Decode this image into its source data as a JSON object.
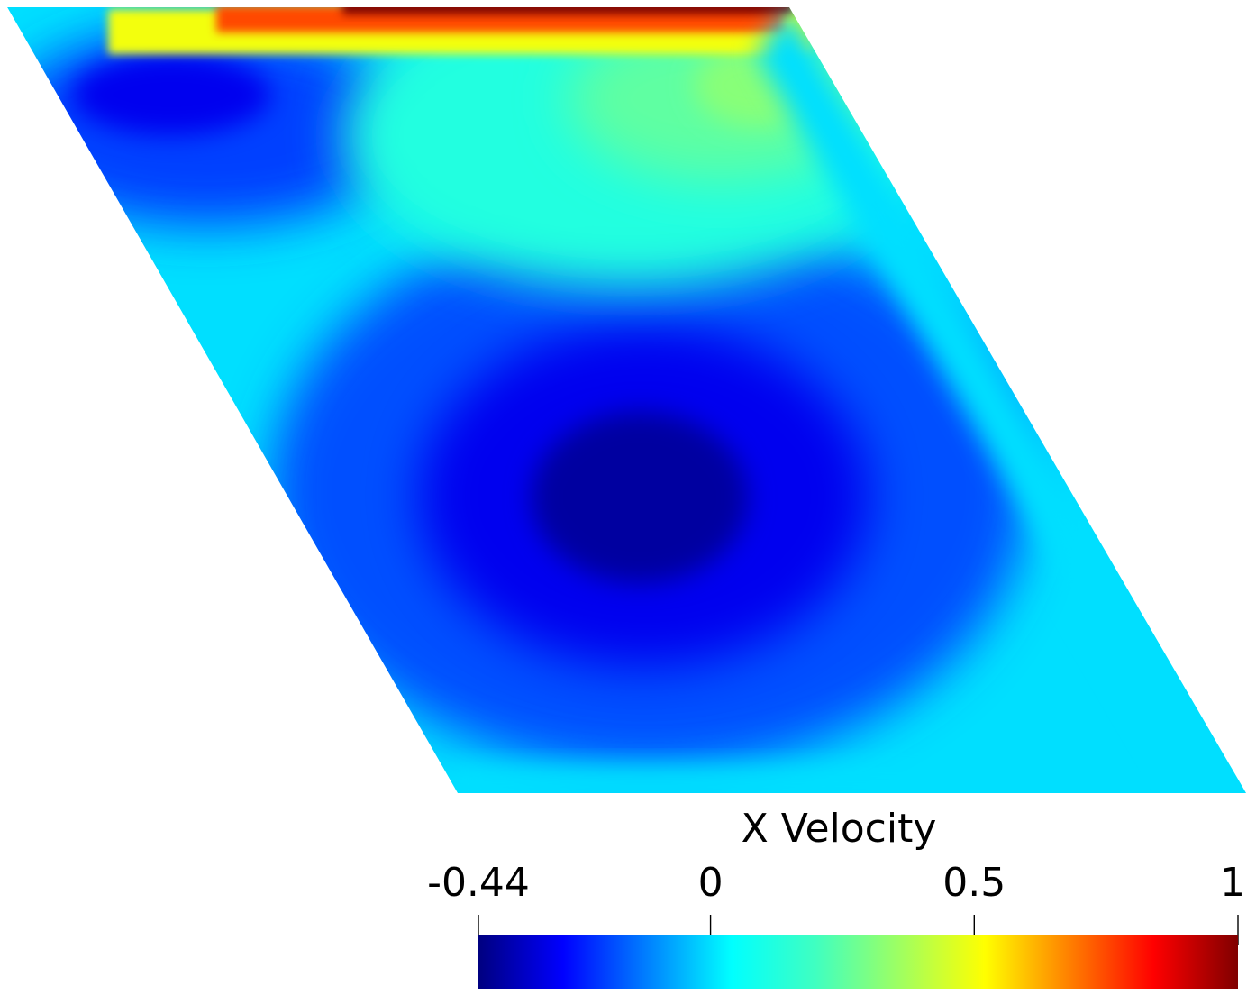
{
  "chart_data": {
    "type": "heatmap",
    "field_name": "X Velocity",
    "range": [
      -0.44,
      1
    ],
    "colorbar": {
      "title": "X Velocity",
      "ticks": [
        {
          "value": -0.44,
          "label": "-0.44"
        },
        {
          "value": 0,
          "label": "0"
        },
        {
          "value": 0.5,
          "label": "0.5"
        },
        {
          "value": 1,
          "label": "1"
        }
      ],
      "colormap_stops": [
        {
          "value": -0.44,
          "color": "#000080"
        },
        {
          "value": -0.28,
          "color": "#0000ff"
        },
        {
          "value": -0.12,
          "color": "#0080ff"
        },
        {
          "value": 0.04,
          "color": "#00ffff"
        },
        {
          "value": 0.2,
          "color": "#40ffc0"
        },
        {
          "value": 0.36,
          "color": "#a0ff60"
        },
        {
          "value": 0.52,
          "color": "#ffff00"
        },
        {
          "value": 0.68,
          "color": "#ff8000"
        },
        {
          "value": 0.84,
          "color": "#ff0000"
        },
        {
          "value": 1,
          "color": "#800000"
        }
      ],
      "placement": "bottom-right",
      "orientation": "horizontal"
    },
    "domain": {
      "shape": "parallelogram (skewed lid-driven cavity)",
      "lid": "top edge, x velocity = 1"
    },
    "field_samples": {
      "lid_value": 1,
      "right_wall_value": 0,
      "bottom_wall_value": 0,
      "main_vortex_min": -0.4,
      "secondary_vortex_min": -0.3,
      "upper_right_max": 0.3
    }
  }
}
